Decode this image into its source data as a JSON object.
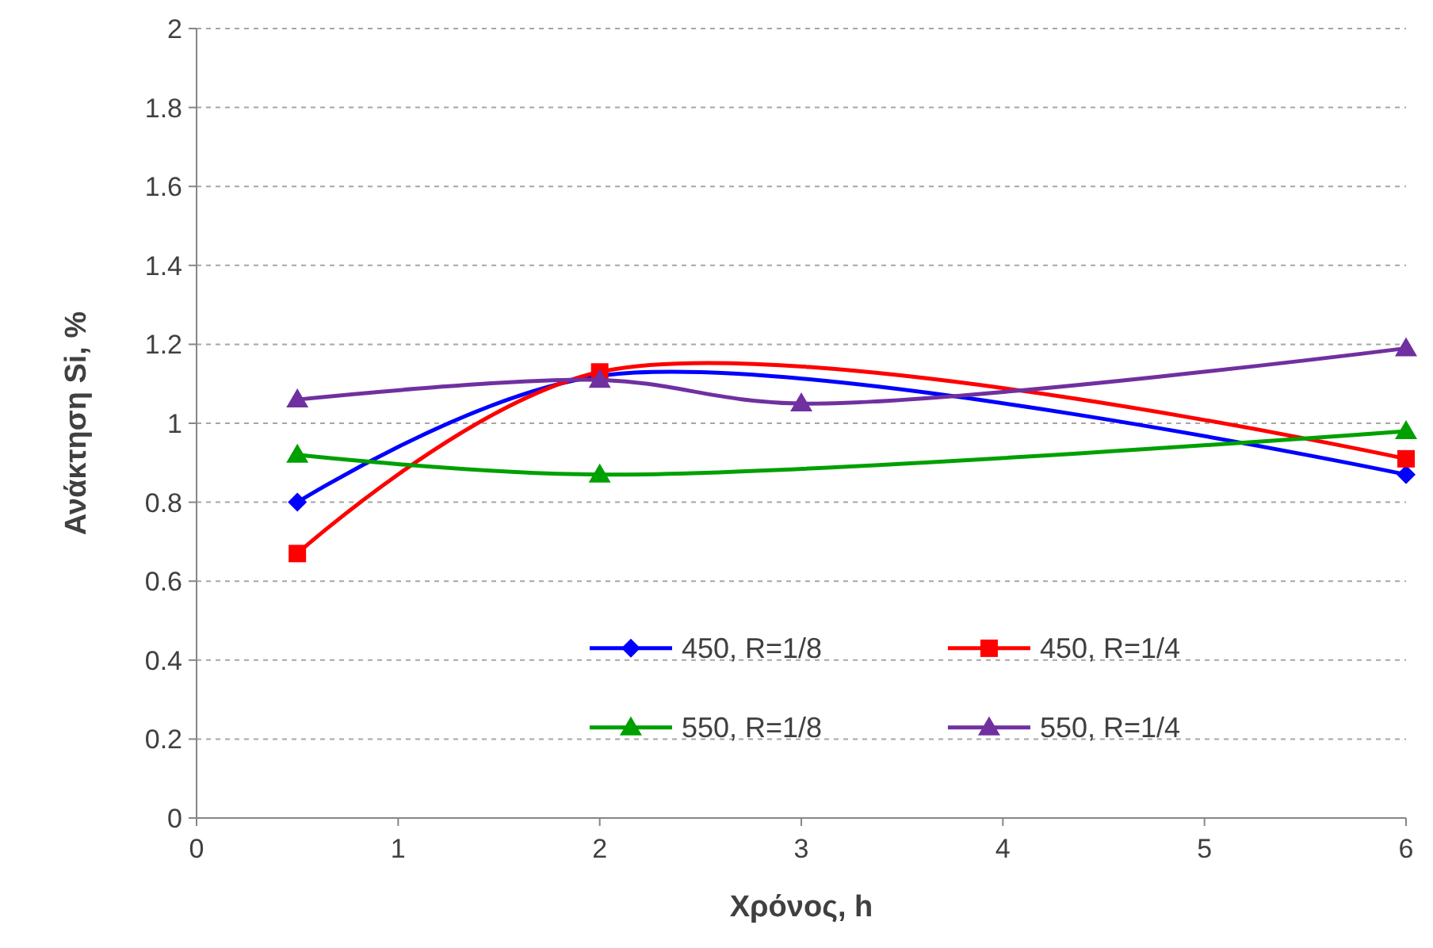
{
  "chart_data": {
    "type": "line",
    "xlabel": "Χρόνος, h",
    "ylabel": "Ανάκτηση Si, %",
    "xlim": [
      0,
      6
    ],
    "xticks": [
      0,
      1,
      2,
      3,
      4,
      5,
      6
    ],
    "ylim": [
      0,
      2
    ],
    "yticks": [
      0,
      0.2,
      0.4,
      0.6,
      0.8,
      1,
      1.2,
      1.4,
      1.6,
      1.8,
      2
    ],
    "grid": "y",
    "legend": "bottom",
    "line_style": "solid",
    "series": [
      {
        "name": "450, R=1/8",
        "color": "#0000ff",
        "marker": "diamond",
        "x": [
          0.5,
          2,
          6
        ],
        "values": [
          0.8,
          1.12,
          0.87
        ]
      },
      {
        "name": "450, R=1/4",
        "color": "#ff0000",
        "marker": "square",
        "x": [
          0.5,
          2,
          6
        ],
        "values": [
          0.67,
          1.13,
          0.91
        ]
      },
      {
        "name": "550, R=1/8",
        "color": "#00a000",
        "marker": "triangle",
        "x": [
          0.5,
          2,
          6
        ],
        "values": [
          0.92,
          0.87,
          0.98
        ]
      },
      {
        "name": "550, R=1/4",
        "color": "#7030a0",
        "marker": "triangle",
        "x": [
          0.5,
          2,
          3,
          6
        ],
        "values": [
          1.06,
          1.11,
          1.05,
          1.19
        ]
      }
    ]
  }
}
